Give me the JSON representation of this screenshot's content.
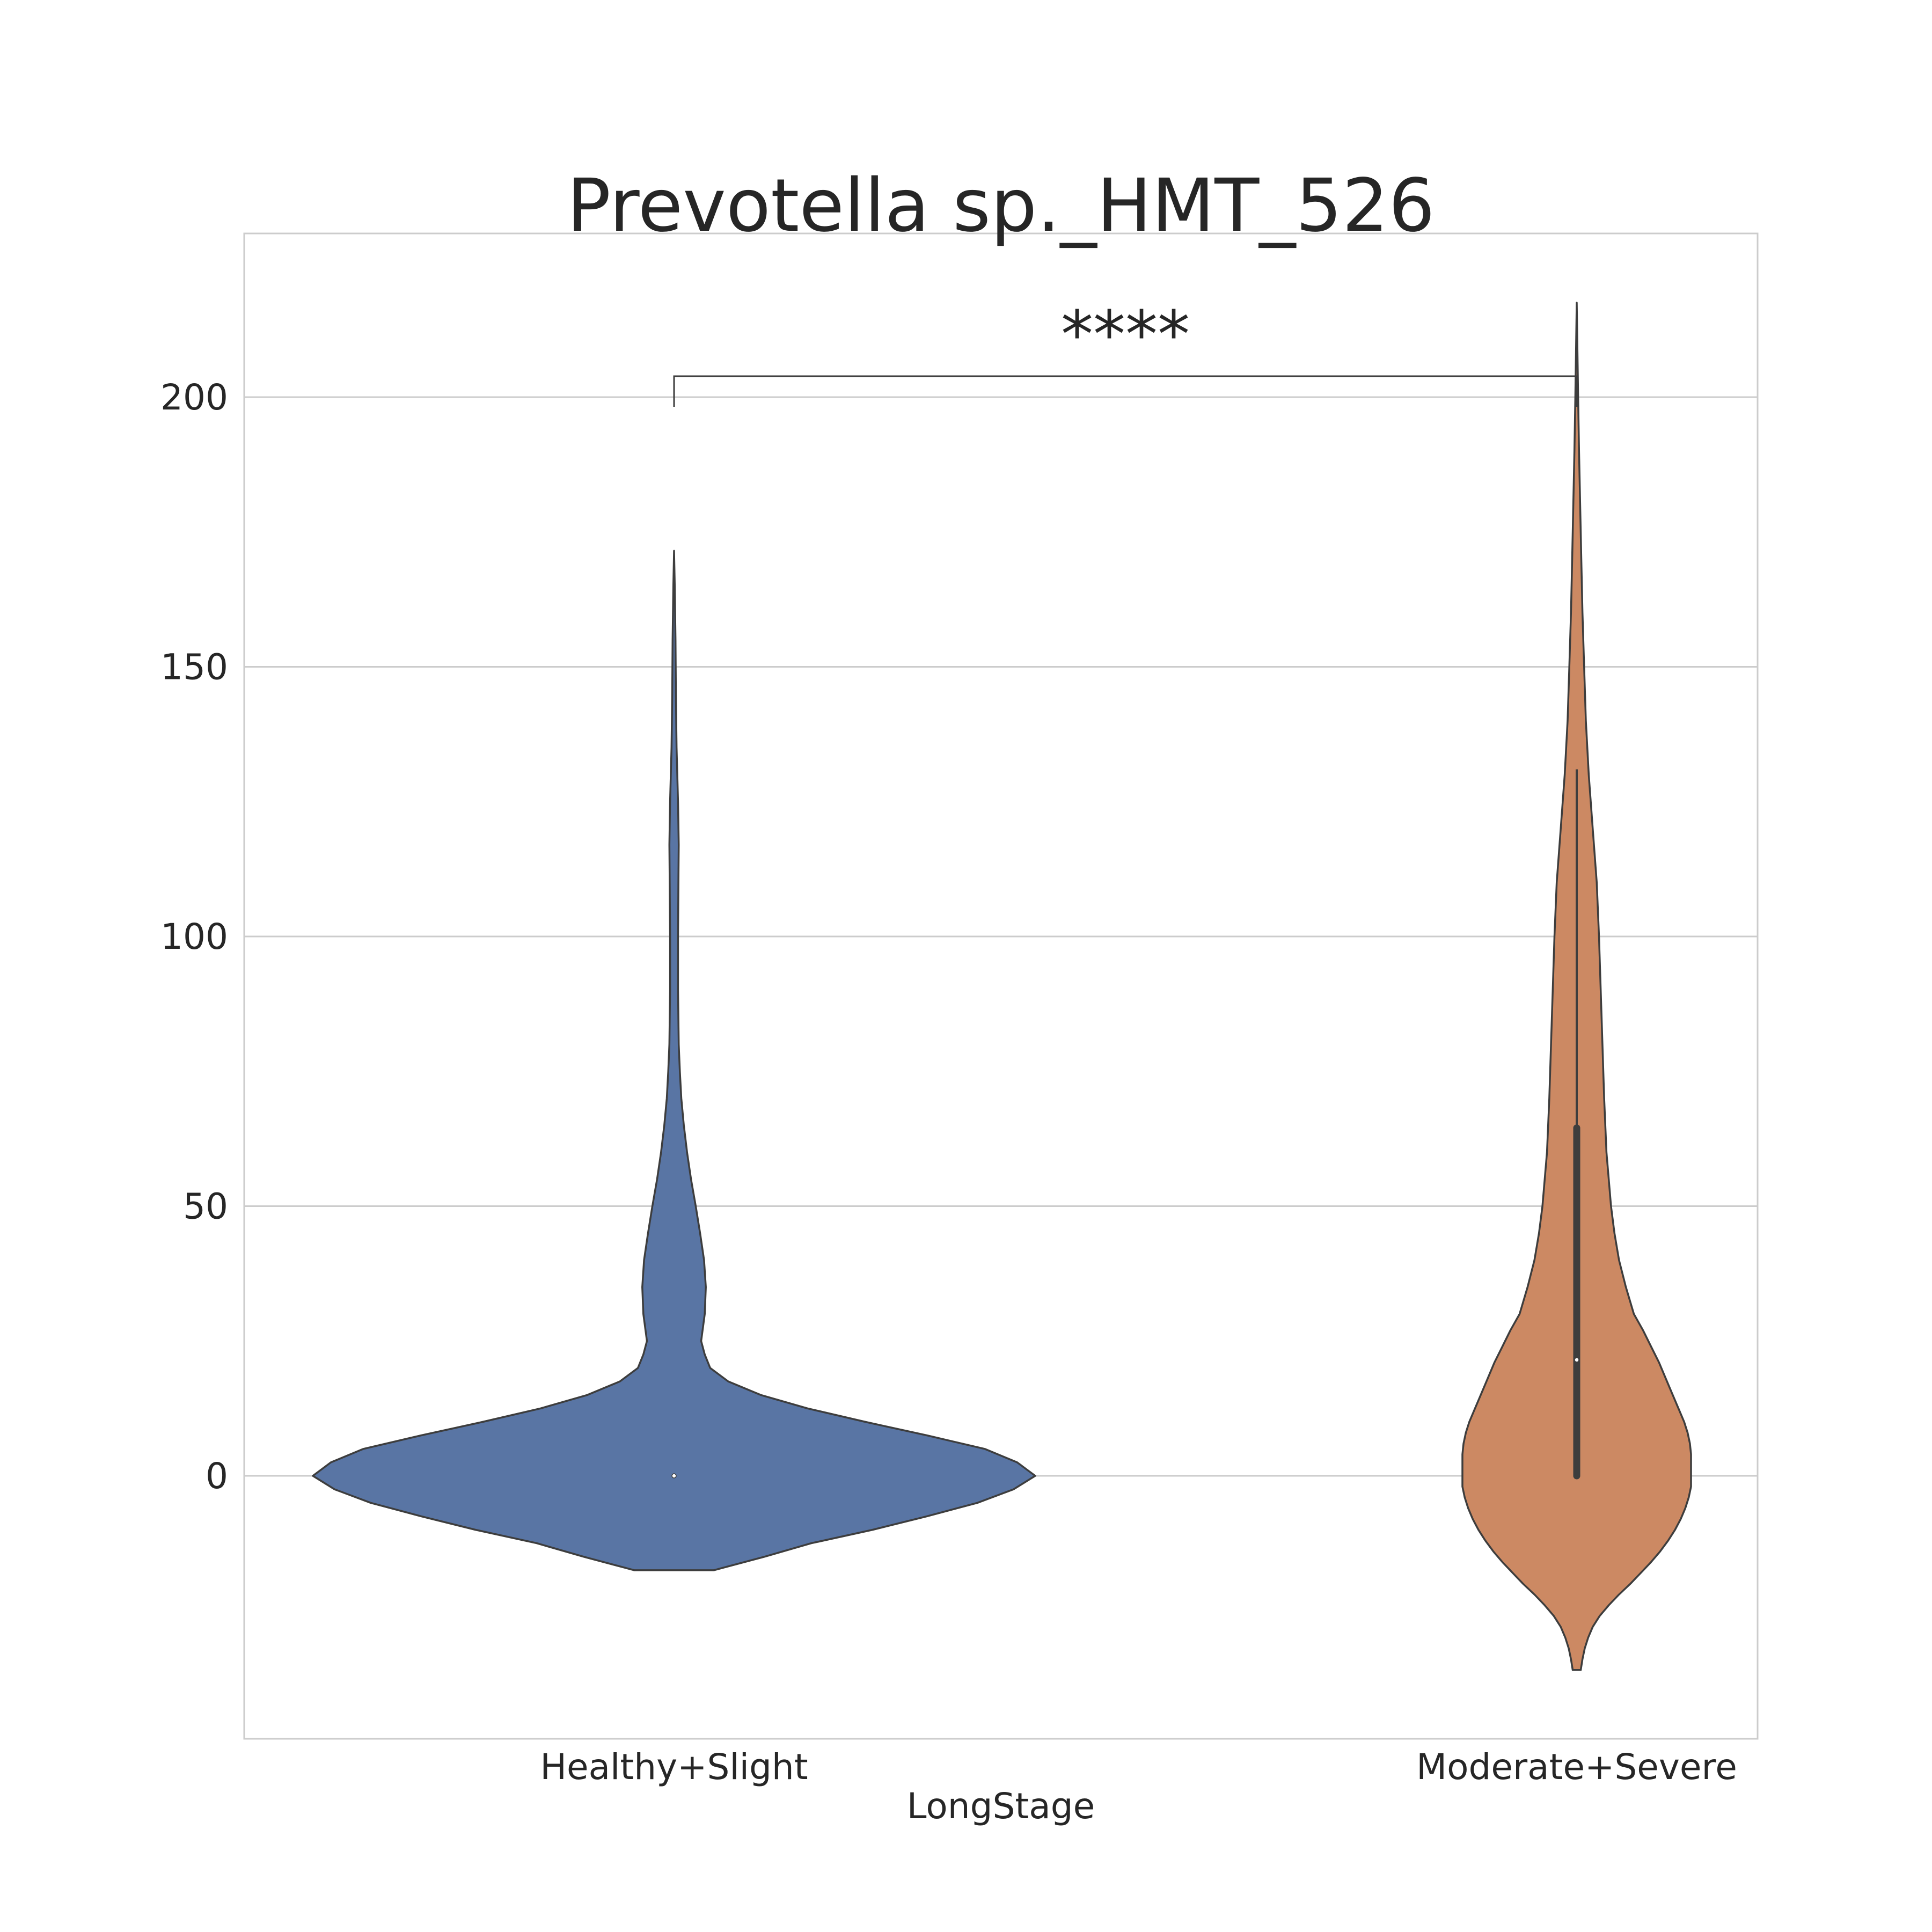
{
  "chart_data": {
    "type": "violin",
    "title": "Prevotella sp._HMT_526",
    "xlabel": "LongStage",
    "ylabel": "",
    "ylim": [
      -49,
      230
    ],
    "yticks": [
      0,
      50,
      100,
      150,
      200
    ],
    "grid": true,
    "categories": [
      "Healthy+Slight",
      "Moderate+Severe"
    ],
    "colors": {
      "Healthy+Slight": "#5975a4",
      "Moderate+Severe": "#cc8963",
      "outline": "#3d3d3d",
      "grid": "#cccccc"
    },
    "series": [
      {
        "category": "Healthy+Slight",
        "median": 0,
        "q1": 0,
        "q3": 0,
        "whisker_low": 0,
        "whisker_high": 0,
        "kde_range": [
          -17.5,
          171.5
        ],
        "density": [
          [
            -17.5,
            0.11
          ],
          [
            -15,
            0.25
          ],
          [
            -12.5,
            0.38
          ],
          [
            -10,
            0.55
          ],
          [
            -7.5,
            0.7
          ],
          [
            -5,
            0.84
          ],
          [
            -2.5,
            0.94
          ],
          [
            0,
            1.0
          ],
          [
            2.5,
            0.95
          ],
          [
            5,
            0.86
          ],
          [
            7.5,
            0.7
          ],
          [
            10,
            0.53
          ],
          [
            12.5,
            0.37
          ],
          [
            15,
            0.24
          ],
          [
            17.5,
            0.15
          ],
          [
            20,
            0.1
          ],
          [
            22.5,
            0.085
          ],
          [
            25,
            0.075
          ],
          [
            30,
            0.085
          ],
          [
            35,
            0.088
          ],
          [
            40,
            0.083
          ],
          [
            45,
            0.072
          ],
          [
            50,
            0.06
          ],
          [
            55,
            0.047
          ],
          [
            60,
            0.036
          ],
          [
            65,
            0.027
          ],
          [
            70,
            0.02
          ],
          [
            75,
            0.016
          ],
          [
            80,
            0.013
          ],
          [
            90,
            0.011
          ],
          [
            100,
            0.011
          ],
          [
            110,
            0.012
          ],
          [
            117,
            0.013
          ],
          [
            125,
            0.011
          ],
          [
            135,
            0.007
          ],
          [
            145,
            0.005
          ],
          [
            155,
            0.004
          ],
          [
            165,
            0.002
          ],
          [
            171.5,
            0.0
          ]
        ]
      },
      {
        "category": "Moderate+Severe",
        "median": 21.5,
        "q1": 0,
        "q3": 64.5,
        "whisker_low": 0,
        "whisker_high": 131,
        "kde_range": [
          -36,
          217.5
        ],
        "density": [
          [
            -36,
            0.035
          ],
          [
            -34,
            0.05
          ],
          [
            -32,
            0.07
          ],
          [
            -30,
            0.1
          ],
          [
            -28,
            0.14
          ],
          [
            -26,
            0.2
          ],
          [
            -24,
            0.28
          ],
          [
            -22,
            0.37
          ],
          [
            -20,
            0.47
          ],
          [
            -18,
            0.56
          ],
          [
            -16,
            0.65
          ],
          [
            -14,
            0.73
          ],
          [
            -12,
            0.8
          ],
          [
            -10,
            0.86
          ],
          [
            -8,
            0.91
          ],
          [
            -6,
            0.95
          ],
          [
            -4,
            0.98
          ],
          [
            -2,
            1.0
          ],
          [
            0,
            1.0
          ],
          [
            2,
            1.0
          ],
          [
            4,
            1.0
          ],
          [
            6,
            0.99
          ],
          [
            8,
            0.97
          ],
          [
            10,
            0.94
          ],
          [
            12,
            0.9
          ],
          [
            15,
            0.84
          ],
          [
            18,
            0.78
          ],
          [
            21,
            0.72
          ],
          [
            24,
            0.65
          ],
          [
            27,
            0.58
          ],
          [
            30,
            0.5
          ],
          [
            35,
            0.43
          ],
          [
            40,
            0.37
          ],
          [
            45,
            0.33
          ],
          [
            50,
            0.3
          ],
          [
            60,
            0.26
          ],
          [
            70,
            0.24
          ],
          [
            80,
            0.225
          ],
          [
            90,
            0.21
          ],
          [
            100,
            0.195
          ],
          [
            110,
            0.175
          ],
          [
            120,
            0.14
          ],
          [
            130,
            0.105
          ],
          [
            140,
            0.08
          ],
          [
            150,
            0.065
          ],
          [
            160,
            0.05
          ],
          [
            170,
            0.04
          ],
          [
            180,
            0.03
          ],
          [
            190,
            0.02
          ],
          [
            200,
            0.012
          ],
          [
            210,
            0.005
          ],
          [
            217.5,
            0.0
          ]
        ]
      }
    ],
    "annotations": [
      {
        "from": "Healthy+Slight",
        "to": "Moderate+Severe",
        "text": "****"
      }
    ]
  }
}
